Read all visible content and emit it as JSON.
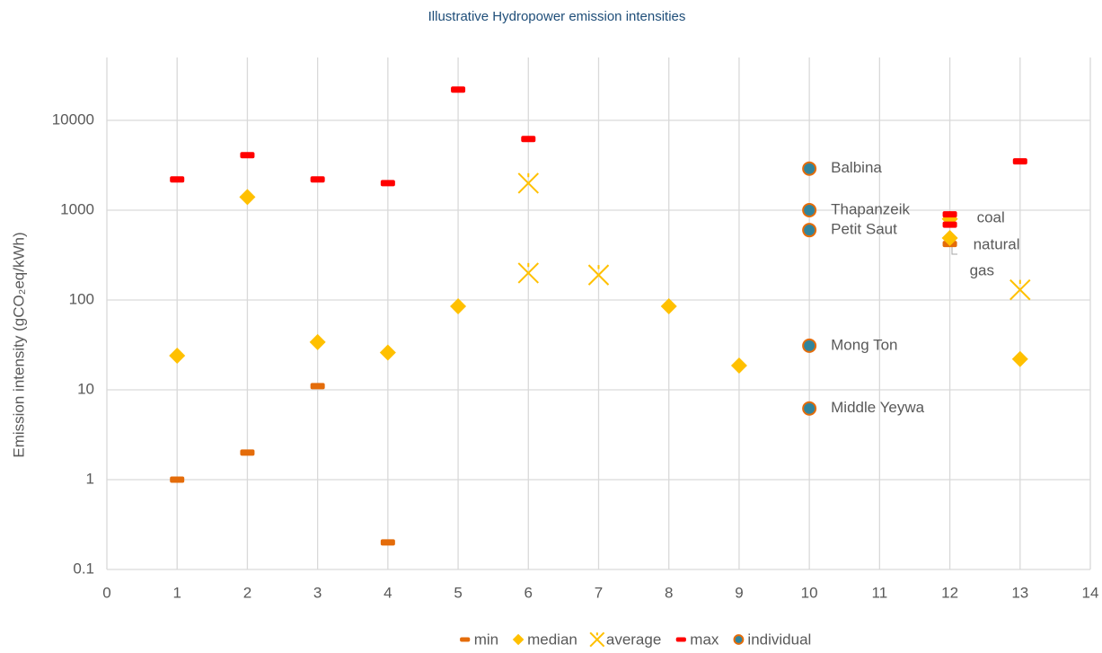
{
  "chart_data": {
    "type": "scatter",
    "title": "Illustrative Hydropower emission intensities",
    "y_label": "Emission intensity (gCO₂eq/kWh)",
    "log_y": true,
    "grid": true,
    "legend": "bottom",
    "xlim": [
      0,
      14
    ],
    "xticks": [
      0,
      1,
      2,
      3,
      4,
      5,
      6,
      7,
      8,
      9,
      10,
      11,
      12,
      13,
      14
    ],
    "ylim": [
      0.1,
      100000
    ],
    "yticks": [
      0.1,
      1,
      10,
      100,
      1000,
      10000
    ],
    "series": [
      {
        "name": "min",
        "color": "#e46c0a",
        "marker": "dash",
        "x": [
          1,
          2,
          3,
          4,
          12
        ],
        "values": [
          1,
          2,
          11,
          0.2,
          420
        ]
      },
      {
        "name": "median",
        "color": "#ffc000",
        "marker": "diamond",
        "x": [
          1,
          2,
          3,
          4,
          5,
          8,
          9,
          12,
          12,
          13
        ],
        "values": [
          24,
          1400,
          34,
          26,
          85,
          85,
          18.6,
          800,
          490,
          22
        ]
      },
      {
        "name": "average",
        "color": "#ffc000",
        "marker": "x",
        "x": [
          6,
          6,
          7,
          13
        ],
        "values": [
          2000,
          200,
          190,
          130
        ]
      },
      {
        "name": "max",
        "color": "#ff0000",
        "marker": "dash",
        "x": [
          1,
          2,
          3,
          4,
          5,
          6,
          12,
          12,
          13
        ],
        "values": [
          2200,
          4100,
          2200,
          2000,
          22000,
          6200,
          900,
          690,
          3500
        ]
      },
      {
        "name": "individual",
        "color": "#31849b",
        "edge": "#e46c0a",
        "marker": "circle",
        "x": [
          10,
          10,
          10,
          10,
          10
        ],
        "values": [
          2900,
          1000,
          600,
          31,
          6.2
        ],
        "labels": [
          "Balbina",
          "Thapanzeik",
          "Petit Saut",
          "Mong Ton",
          "Middle Yeywa"
        ]
      }
    ],
    "annotations": [
      "coal",
      "natural",
      "gas"
    ]
  }
}
